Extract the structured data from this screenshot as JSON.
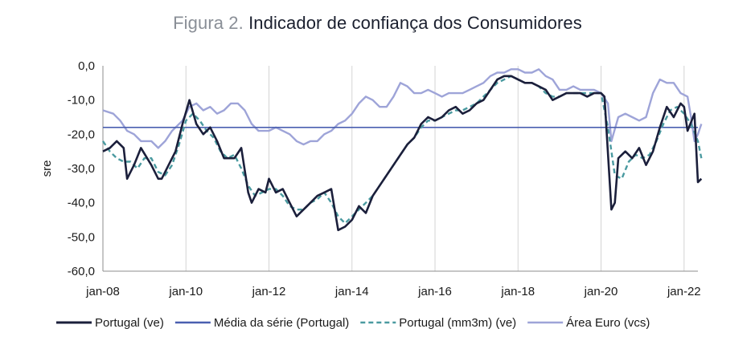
{
  "figure": {
    "prefix": "Figura 2.",
    "title": "Indicador de confiança dos Consumidores"
  },
  "chart_data": {
    "type": "line",
    "title": "Indicador de confiança dos Consumidores",
    "ylabel": "sre",
    "xlabel": "",
    "ylim": [
      -60,
      0
    ],
    "y_ticks": [
      "0,0",
      "-10,0",
      "-20,0",
      "-30,0",
      "-40,0",
      "-50,0",
      "-60,0"
    ],
    "x_range": [
      "2008-01",
      "2022-05"
    ],
    "x_ticks": [
      "jan-08",
      "jan-10",
      "jan-12",
      "jan-14",
      "jan-16",
      "jan-18",
      "jan-20",
      "jan-22"
    ],
    "grid": "vertical",
    "legend_position": "bottom",
    "series": [
      {
        "name": "Portugal (ve)",
        "color": "#1b1f3b",
        "style": "solid",
        "points": [
          [
            "2008-01",
            -25
          ],
          [
            "2008-03",
            -24
          ],
          [
            "2008-05",
            -22
          ],
          [
            "2008-07",
            -24
          ],
          [
            "2008-08",
            -33
          ],
          [
            "2008-10",
            -29
          ],
          [
            "2008-12",
            -24
          ],
          [
            "2009-03",
            -29
          ],
          [
            "2009-05",
            -33
          ],
          [
            "2009-06",
            -33
          ],
          [
            "2009-08",
            -29
          ],
          [
            "2009-10",
            -25
          ],
          [
            "2009-12",
            -17
          ],
          [
            "2010-02",
            -10
          ],
          [
            "2010-04",
            -17
          ],
          [
            "2010-06",
            -20
          ],
          [
            "2010-08",
            -18
          ],
          [
            "2010-10",
            -22
          ],
          [
            "2010-12",
            -27
          ],
          [
            "2011-03",
            -27
          ],
          [
            "2011-05",
            -24
          ],
          [
            "2011-07",
            -37
          ],
          [
            "2011-08",
            -40
          ],
          [
            "2011-10",
            -36
          ],
          [
            "2011-12",
            -37
          ],
          [
            "2012-01",
            -33
          ],
          [
            "2012-03",
            -37
          ],
          [
            "2012-05",
            -36
          ],
          [
            "2012-07",
            -40
          ],
          [
            "2012-09",
            -44
          ],
          [
            "2012-11",
            -42
          ],
          [
            "2013-01",
            -40
          ],
          [
            "2013-03",
            -38
          ],
          [
            "2013-05",
            -37
          ],
          [
            "2013-07",
            -36
          ],
          [
            "2013-09",
            -48
          ],
          [
            "2013-11",
            -47
          ],
          [
            "2014-01",
            -45
          ],
          [
            "2014-03",
            -41
          ],
          [
            "2014-05",
            -43
          ],
          [
            "2014-07",
            -38
          ],
          [
            "2014-09",
            -35
          ],
          [
            "2014-11",
            -32
          ],
          [
            "2015-01",
            -29
          ],
          [
            "2015-03",
            -26
          ],
          [
            "2015-05",
            -23
          ],
          [
            "2015-07",
            -21
          ],
          [
            "2015-09",
            -17
          ],
          [
            "2015-11",
            -15
          ],
          [
            "2016-01",
            -16
          ],
          [
            "2016-03",
            -15
          ],
          [
            "2016-05",
            -13
          ],
          [
            "2016-07",
            -12
          ],
          [
            "2016-09",
            -14
          ],
          [
            "2016-11",
            -13
          ],
          [
            "2017-01",
            -11
          ],
          [
            "2017-03",
            -10
          ],
          [
            "2017-05",
            -7
          ],
          [
            "2017-07",
            -4
          ],
          [
            "2017-09",
            -3
          ],
          [
            "2017-11",
            -3
          ],
          [
            "2018-01",
            -4
          ],
          [
            "2018-03",
            -5
          ],
          [
            "2018-05",
            -5
          ],
          [
            "2018-07",
            -6
          ],
          [
            "2018-09",
            -7
          ],
          [
            "2018-11",
            -10
          ],
          [
            "2019-01",
            -9
          ],
          [
            "2019-03",
            -8
          ],
          [
            "2019-05",
            -8
          ],
          [
            "2019-07",
            -8
          ],
          [
            "2019-09",
            -9
          ],
          [
            "2019-11",
            -8
          ],
          [
            "2020-01",
            -8
          ],
          [
            "2020-02",
            -9
          ],
          [
            "2020-04",
            -42
          ],
          [
            "2020-05",
            -40
          ],
          [
            "2020-06",
            -27
          ],
          [
            "2020-08",
            -25
          ],
          [
            "2020-10",
            -27
          ],
          [
            "2020-12",
            -24
          ],
          [
            "2021-02",
            -29
          ],
          [
            "2021-04",
            -25
          ],
          [
            "2021-06",
            -18
          ],
          [
            "2021-08",
            -12
          ],
          [
            "2021-10",
            -15
          ],
          [
            "2021-12",
            -11
          ],
          [
            "2022-01",
            -12
          ],
          [
            "2022-02",
            -19
          ],
          [
            "2022-04",
            -14
          ],
          [
            "2022-05",
            -34
          ],
          [
            "2022-06",
            -33
          ]
        ]
      },
      {
        "name": "Média da série (Portugal)",
        "color": "#4a5fb0",
        "style": "solid",
        "constant": -18
      },
      {
        "name": "Portugal (mm3m) (ve)",
        "color": "#4a9aa0",
        "style": "dashed",
        "points": [
          [
            "2008-01",
            -22
          ],
          [
            "2008-03",
            -25
          ],
          [
            "2008-05",
            -27
          ],
          [
            "2008-07",
            -28
          ],
          [
            "2008-09",
            -28
          ],
          [
            "2008-11",
            -30
          ],
          [
            "2009-01",
            -27
          ],
          [
            "2009-03",
            -27
          ],
          [
            "2009-05",
            -31
          ],
          [
            "2009-07",
            -32
          ],
          [
            "2009-09",
            -29
          ],
          [
            "2009-11",
            -23
          ],
          [
            "2010-01",
            -16
          ],
          [
            "2010-03",
            -14
          ],
          [
            "2010-05",
            -16
          ],
          [
            "2010-07",
            -19
          ],
          [
            "2010-09",
            -21
          ],
          [
            "2010-11",
            -25
          ],
          [
            "2011-01",
            -27
          ],
          [
            "2011-03",
            -26
          ],
          [
            "2011-05",
            -30
          ],
          [
            "2011-07",
            -35
          ],
          [
            "2011-09",
            -38
          ],
          [
            "2011-11",
            -37
          ],
          [
            "2012-01",
            -36
          ],
          [
            "2012-03",
            -36
          ],
          [
            "2012-05",
            -38
          ],
          [
            "2012-07",
            -41
          ],
          [
            "2012-09",
            -42
          ],
          [
            "2012-11",
            -42
          ],
          [
            "2013-01",
            -40
          ],
          [
            "2013-03",
            -39
          ],
          [
            "2013-05",
            -37
          ],
          [
            "2013-07",
            -40
          ],
          [
            "2013-09",
            -44
          ],
          [
            "2013-11",
            -46
          ],
          [
            "2014-01",
            -44
          ],
          [
            "2014-03",
            -42
          ],
          [
            "2014-05",
            -40
          ],
          [
            "2014-07",
            -38
          ],
          [
            "2014-09",
            -35
          ],
          [
            "2014-11",
            -32
          ],
          [
            "2015-01",
            -29
          ],
          [
            "2015-03",
            -26
          ],
          [
            "2015-05",
            -23
          ],
          [
            "2015-07",
            -21
          ],
          [
            "2015-09",
            -18
          ],
          [
            "2015-11",
            -16
          ],
          [
            "2016-01",
            -16
          ],
          [
            "2016-03",
            -15
          ],
          [
            "2016-05",
            -14
          ],
          [
            "2016-07",
            -13
          ],
          [
            "2016-09",
            -13
          ],
          [
            "2016-11",
            -12
          ],
          [
            "2017-01",
            -11
          ],
          [
            "2017-03",
            -9
          ],
          [
            "2017-05",
            -7
          ],
          [
            "2017-07",
            -5
          ],
          [
            "2017-09",
            -4
          ],
          [
            "2017-11",
            -3
          ],
          [
            "2018-01",
            -4
          ],
          [
            "2018-03",
            -5
          ],
          [
            "2018-05",
            -5
          ],
          [
            "2018-07",
            -6
          ],
          [
            "2018-09",
            -8
          ],
          [
            "2018-11",
            -9
          ],
          [
            "2019-01",
            -9
          ],
          [
            "2019-03",
            -8
          ],
          [
            "2019-05",
            -8
          ],
          [
            "2019-07",
            -8
          ],
          [
            "2019-09",
            -8
          ],
          [
            "2019-11",
            -8
          ],
          [
            "2020-01",
            -8
          ],
          [
            "2020-03",
            -18
          ],
          [
            "2020-05",
            -32
          ],
          [
            "2020-07",
            -33
          ],
          [
            "2020-09",
            -28
          ],
          [
            "2020-11",
            -26
          ],
          [
            "2021-01",
            -27
          ],
          [
            "2021-03",
            -26
          ],
          [
            "2021-05",
            -22
          ],
          [
            "2021-07",
            -17
          ],
          [
            "2021-09",
            -13
          ],
          [
            "2021-11",
            -12
          ],
          [
            "2022-01",
            -14
          ],
          [
            "2022-03",
            -17
          ],
          [
            "2022-05",
            -22
          ],
          [
            "2022-06",
            -27
          ]
        ]
      },
      {
        "name": "Área Euro (vcs)",
        "color": "#9ea4d8",
        "style": "solid",
        "points": [
          [
            "2008-01",
            -13
          ],
          [
            "2008-04",
            -14
          ],
          [
            "2008-06",
            -16
          ],
          [
            "2008-08",
            -19
          ],
          [
            "2008-10",
            -20
          ],
          [
            "2008-12",
            -22
          ],
          [
            "2009-03",
            -22
          ],
          [
            "2009-05",
            -24
          ],
          [
            "2009-07",
            -22
          ],
          [
            "2009-09",
            -19
          ],
          [
            "2009-12",
            -16
          ],
          [
            "2010-02",
            -12
          ],
          [
            "2010-04",
            -11
          ],
          [
            "2010-06",
            -13
          ],
          [
            "2010-08",
            -12
          ],
          [
            "2010-10",
            -14
          ],
          [
            "2010-12",
            -13
          ],
          [
            "2011-02",
            -11
          ],
          [
            "2011-04",
            -11
          ],
          [
            "2011-06",
            -13
          ],
          [
            "2011-08",
            -17
          ],
          [
            "2011-10",
            -19
          ],
          [
            "2012-01",
            -19
          ],
          [
            "2012-03",
            -18
          ],
          [
            "2012-05",
            -19
          ],
          [
            "2012-07",
            -20
          ],
          [
            "2012-09",
            -22
          ],
          [
            "2012-11",
            -23
          ],
          [
            "2013-01",
            -22
          ],
          [
            "2013-03",
            -22
          ],
          [
            "2013-05",
            -20
          ],
          [
            "2013-07",
            -19
          ],
          [
            "2013-09",
            -17
          ],
          [
            "2013-11",
            -16
          ],
          [
            "2014-01",
            -14
          ],
          [
            "2014-03",
            -11
          ],
          [
            "2014-05",
            -9
          ],
          [
            "2014-07",
            -10
          ],
          [
            "2014-09",
            -12
          ],
          [
            "2014-11",
            -12
          ],
          [
            "2015-01",
            -9
          ],
          [
            "2015-03",
            -5
          ],
          [
            "2015-05",
            -6
          ],
          [
            "2015-07",
            -8
          ],
          [
            "2015-09",
            -8
          ],
          [
            "2015-11",
            -7
          ],
          [
            "2016-01",
            -8
          ],
          [
            "2016-03",
            -9
          ],
          [
            "2016-05",
            -8
          ],
          [
            "2016-07",
            -8
          ],
          [
            "2016-09",
            -8
          ],
          [
            "2016-11",
            -7
          ],
          [
            "2017-01",
            -6
          ],
          [
            "2017-03",
            -5
          ],
          [
            "2017-05",
            -3
          ],
          [
            "2017-07",
            -2
          ],
          [
            "2017-09",
            -2
          ],
          [
            "2017-11",
            -1
          ],
          [
            "2018-01",
            -1
          ],
          [
            "2018-03",
            -2
          ],
          [
            "2018-05",
            -2
          ],
          [
            "2018-07",
            -1
          ],
          [
            "2018-09",
            -3
          ],
          [
            "2018-11",
            -4
          ],
          [
            "2019-01",
            -7
          ],
          [
            "2019-03",
            -7
          ],
          [
            "2019-05",
            -6
          ],
          [
            "2019-07",
            -7
          ],
          [
            "2019-09",
            -7
          ],
          [
            "2019-11",
            -7
          ],
          [
            "2020-01",
            -8
          ],
          [
            "2020-03",
            -11
          ],
          [
            "2020-04",
            -22
          ],
          [
            "2020-06",
            -15
          ],
          [
            "2020-08",
            -14
          ],
          [
            "2020-10",
            -15
          ],
          [
            "2020-12",
            -16
          ],
          [
            "2021-02",
            -15
          ],
          [
            "2021-04",
            -8
          ],
          [
            "2021-06",
            -4
          ],
          [
            "2021-08",
            -5
          ],
          [
            "2021-10",
            -5
          ],
          [
            "2021-12",
            -8
          ],
          [
            "2022-02",
            -9
          ],
          [
            "2022-03",
            -15
          ],
          [
            "2022-04",
            -22
          ],
          [
            "2022-05",
            -20
          ],
          [
            "2022-06",
            -17
          ]
        ]
      }
    ]
  }
}
